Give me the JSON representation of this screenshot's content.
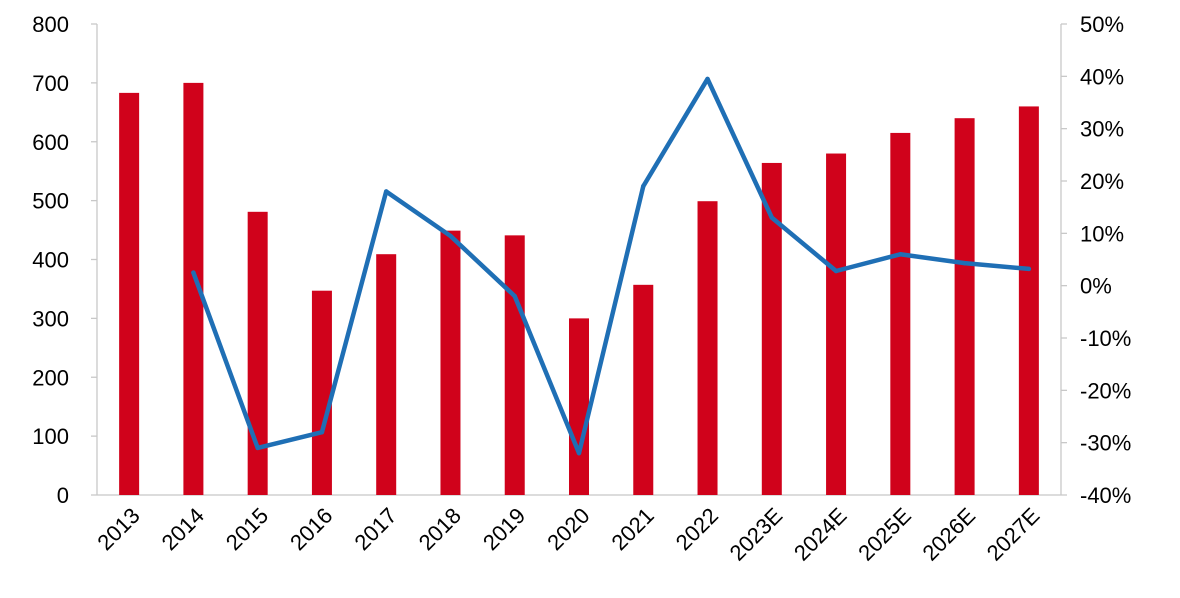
{
  "chart_data": {
    "type": "bar",
    "categories": [
      "2013",
      "2014",
      "2015",
      "2016",
      "2017",
      "2018",
      "2019",
      "2020",
      "2021",
      "2022",
      "2023E",
      "2024E",
      "2025E",
      "2026E",
      "2027E"
    ],
    "series": [
      {
        "type": "bar",
        "axis": "left",
        "values": [
          683,
          700,
          481,
          347,
          409,
          449,
          441,
          300,
          357,
          499,
          564,
          580,
          615,
          640,
          660
        ]
      },
      {
        "type": "line",
        "axis": "right",
        "values": [
          null,
          2.5,
          -31,
          -28,
          18,
          9.5,
          -2,
          -32,
          19,
          39.5,
          13,
          2.8,
          6,
          4.3,
          3.2
        ]
      }
    ],
    "yaxis_left": {
      "ylim": [
        0,
        800
      ],
      "ticks": [
        "0",
        "100",
        "200",
        "300",
        "400",
        "500",
        "600",
        "700",
        "800"
      ]
    },
    "yaxis_right": {
      "ylim": [
        -40,
        50
      ],
      "ticks": [
        "-40%",
        "-30%",
        "-20%",
        "-10%",
        "0%",
        "10%",
        "20%",
        "30%",
        "40%",
        "50%"
      ]
    },
    "grid": false,
    "legend": "none",
    "colors": {
      "bar": "#D0021B",
      "line": "#1F6FB5",
      "axis": "#C8C8C8"
    }
  }
}
